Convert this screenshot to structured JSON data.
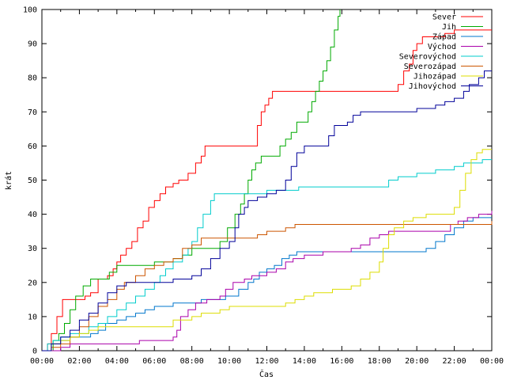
{
  "chart_data": {
    "type": "line",
    "title": "",
    "xlabel": "Čas",
    "ylabel": "krát",
    "xlim": [
      0,
      24
    ],
    "ylim": [
      0,
      100
    ],
    "x_tick_labels": [
      "00:00",
      "02:00",
      "04:00",
      "06:00",
      "08:00",
      "10:00",
      "12:00",
      "14:00",
      "16:00",
      "18:00",
      "20:00",
      "22:00",
      "00:00"
    ],
    "y_ticks": [
      0,
      10,
      20,
      30,
      40,
      50,
      60,
      70,
      80,
      90,
      100
    ],
    "grid": false,
    "legend_position": "top-right",
    "series": [
      {
        "name": "Sever",
        "color": "#ff0000",
        "points": [
          [
            0,
            0
          ],
          [
            0.2,
            0
          ],
          [
            0.3,
            2
          ],
          [
            0.5,
            5
          ],
          [
            0.8,
            10
          ],
          [
            1.1,
            15
          ],
          [
            1.6,
            15
          ],
          [
            2.0,
            15
          ],
          [
            2.3,
            16
          ],
          [
            2.6,
            17
          ],
          [
            3.0,
            21
          ],
          [
            3.5,
            22
          ],
          [
            3.8,
            24
          ],
          [
            4.0,
            26
          ],
          [
            4.2,
            28
          ],
          [
            4.5,
            30
          ],
          [
            4.8,
            32
          ],
          [
            5.1,
            36
          ],
          [
            5.4,
            38
          ],
          [
            5.7,
            42
          ],
          [
            6.0,
            44
          ],
          [
            6.3,
            46
          ],
          [
            6.6,
            48
          ],
          [
            7.0,
            49
          ],
          [
            7.3,
            50
          ],
          [
            7.8,
            52
          ],
          [
            8.2,
            55
          ],
          [
            8.5,
            57
          ],
          [
            8.7,
            60
          ],
          [
            10.0,
            60
          ],
          [
            11.3,
            60
          ],
          [
            11.5,
            66
          ],
          [
            11.7,
            70
          ],
          [
            11.9,
            72
          ],
          [
            12.1,
            74
          ],
          [
            12.3,
            76
          ],
          [
            14.0,
            76
          ],
          [
            16.0,
            76
          ],
          [
            18.8,
            76
          ],
          [
            19.0,
            78
          ],
          [
            19.3,
            82
          ],
          [
            19.6,
            84
          ],
          [
            19.8,
            88
          ],
          [
            20.0,
            90
          ],
          [
            20.3,
            92
          ],
          [
            21.0,
            92
          ],
          [
            21.5,
            93
          ],
          [
            22.0,
            94
          ],
          [
            24.0,
            94
          ]
        ]
      },
      {
        "name": "Jih",
        "color": "#00aa00",
        "points": [
          [
            0,
            0
          ],
          [
            0.3,
            0
          ],
          [
            0.6,
            3
          ],
          [
            0.9,
            5
          ],
          [
            1.2,
            8
          ],
          [
            1.5,
            12
          ],
          [
            1.8,
            16
          ],
          [
            2.2,
            19
          ],
          [
            2.6,
            21
          ],
          [
            3.2,
            21
          ],
          [
            3.6,
            23
          ],
          [
            4.0,
            25
          ],
          [
            5.0,
            25
          ],
          [
            6.0,
            26
          ],
          [
            7.0,
            27
          ],
          [
            7.5,
            28
          ],
          [
            8.0,
            30
          ],
          [
            9.0,
            30
          ],
          [
            9.5,
            32
          ],
          [
            9.9,
            36
          ],
          [
            10.3,
            40
          ],
          [
            10.6,
            43
          ],
          [
            10.8,
            46
          ],
          [
            11.0,
            50
          ],
          [
            11.2,
            53
          ],
          [
            11.4,
            55
          ],
          [
            11.7,
            57
          ],
          [
            12.4,
            57
          ],
          [
            12.7,
            60
          ],
          [
            13.0,
            62
          ],
          [
            13.3,
            64
          ],
          [
            13.6,
            67
          ],
          [
            14.0,
            67
          ],
          [
            14.2,
            70
          ],
          [
            14.4,
            73
          ],
          [
            14.6,
            76
          ],
          [
            14.8,
            79
          ],
          [
            15.0,
            82
          ],
          [
            15.2,
            85
          ],
          [
            15.4,
            89
          ],
          [
            15.6,
            94
          ],
          [
            15.8,
            98
          ],
          [
            15.9,
            100
          ]
        ]
      },
      {
        "name": "Západ",
        "color": "#0077cc",
        "points": [
          [
            0,
            0
          ],
          [
            0.5,
            2
          ],
          [
            1.0,
            3
          ],
          [
            1.5,
            4
          ],
          [
            2.0,
            4
          ],
          [
            2.6,
            5
          ],
          [
            3.0,
            6
          ],
          [
            3.4,
            8
          ],
          [
            4.0,
            9
          ],
          [
            4.5,
            10
          ],
          [
            5.0,
            11
          ],
          [
            5.5,
            12
          ],
          [
            6.0,
            13
          ],
          [
            7.0,
            14
          ],
          [
            8.5,
            15
          ],
          [
            9.8,
            16
          ],
          [
            10.5,
            18
          ],
          [
            11.0,
            20
          ],
          [
            11.3,
            21
          ],
          [
            11.6,
            23
          ],
          [
            12.0,
            24
          ],
          [
            12.4,
            25
          ],
          [
            12.8,
            27
          ],
          [
            13.2,
            28
          ],
          [
            13.6,
            29
          ],
          [
            15.0,
            29
          ],
          [
            18.0,
            29
          ],
          [
            20.0,
            29
          ],
          [
            20.5,
            30
          ],
          [
            21.0,
            32
          ],
          [
            21.5,
            34
          ],
          [
            22.0,
            36
          ],
          [
            22.5,
            38
          ],
          [
            23.0,
            39
          ],
          [
            24.0,
            39
          ]
        ]
      },
      {
        "name": "Východ",
        "color": "#aa00aa",
        "points": [
          [
            0,
            0
          ],
          [
            1.0,
            1
          ],
          [
            1.5,
            2
          ],
          [
            2.0,
            2
          ],
          [
            4.0,
            2
          ],
          [
            5.0,
            2
          ],
          [
            5.2,
            3
          ],
          [
            6.0,
            3
          ],
          [
            7.0,
            4
          ],
          [
            7.2,
            6
          ],
          [
            7.4,
            10
          ],
          [
            7.8,
            12
          ],
          [
            8.2,
            14
          ],
          [
            8.8,
            15
          ],
          [
            9.5,
            16
          ],
          [
            9.8,
            18
          ],
          [
            10.2,
            20
          ],
          [
            10.8,
            21
          ],
          [
            11.2,
            22
          ],
          [
            12.0,
            23
          ],
          [
            12.5,
            24
          ],
          [
            13.0,
            26
          ],
          [
            13.4,
            27
          ],
          [
            14.0,
            28
          ],
          [
            15.0,
            29
          ],
          [
            16.5,
            30
          ],
          [
            17.0,
            31
          ],
          [
            17.5,
            33
          ],
          [
            18.0,
            34
          ],
          [
            18.5,
            35
          ],
          [
            21.5,
            35
          ],
          [
            21.8,
            37
          ],
          [
            22.2,
            38
          ],
          [
            22.7,
            39
          ],
          [
            23.3,
            40
          ],
          [
            23.8,
            40
          ],
          [
            24.0,
            41
          ]
        ]
      },
      {
        "name": "Severovýchod",
        "color": "#00cccc",
        "points": [
          [
            0,
            0
          ],
          [
            0.3,
            2
          ],
          [
            0.6,
            3
          ],
          [
            1.0,
            4
          ],
          [
            1.5,
            5
          ],
          [
            2.0,
            5
          ],
          [
            2.5,
            7
          ],
          [
            3.0,
            8
          ],
          [
            3.5,
            10
          ],
          [
            4.0,
            12
          ],
          [
            4.5,
            14
          ],
          [
            5.0,
            16
          ],
          [
            5.5,
            18
          ],
          [
            6.0,
            20
          ],
          [
            6.3,
            22
          ],
          [
            6.6,
            24
          ],
          [
            7.0,
            26
          ],
          [
            7.5,
            28
          ],
          [
            7.8,
            30
          ],
          [
            8.0,
            32
          ],
          [
            8.3,
            36
          ],
          [
            8.6,
            40
          ],
          [
            9.0,
            44
          ],
          [
            9.2,
            46
          ],
          [
            10.0,
            46
          ],
          [
            12.0,
            47
          ],
          [
            13.0,
            47
          ],
          [
            13.7,
            48
          ],
          [
            14.5,
            48
          ],
          [
            16.0,
            48
          ],
          [
            18.3,
            48
          ],
          [
            18.5,
            50
          ],
          [
            19.0,
            51
          ],
          [
            20.0,
            52
          ],
          [
            21.0,
            53
          ],
          [
            22.0,
            54
          ],
          [
            22.5,
            55
          ],
          [
            23.5,
            56
          ],
          [
            24.0,
            56
          ]
        ]
      },
      {
        "name": "Severozápad",
        "color": "#cc5500",
        "points": [
          [
            0,
            0
          ],
          [
            0.5,
            1
          ],
          [
            1.0,
            2
          ],
          [
            1.5,
            4
          ],
          [
            2.0,
            7
          ],
          [
            2.5,
            10
          ],
          [
            3.0,
            13
          ],
          [
            3.5,
            15
          ],
          [
            4.0,
            18
          ],
          [
            4.4,
            20
          ],
          [
            5.0,
            22
          ],
          [
            5.5,
            24
          ],
          [
            6.0,
            25
          ],
          [
            6.5,
            26
          ],
          [
            7.0,
            27
          ],
          [
            7.5,
            30
          ],
          [
            8.0,
            31
          ],
          [
            8.5,
            33
          ],
          [
            9.0,
            33
          ],
          [
            10.0,
            33
          ],
          [
            11.5,
            34
          ],
          [
            12.0,
            35
          ],
          [
            12.5,
            35
          ],
          [
            13.0,
            36
          ],
          [
            13.5,
            37
          ],
          [
            16.0,
            37
          ],
          [
            19.0,
            37
          ],
          [
            21.0,
            37
          ],
          [
            22.0,
            37
          ],
          [
            23.0,
            37
          ],
          [
            24.0,
            38
          ]
        ]
      },
      {
        "name": "Jihozápad",
        "color": "#dddd00",
        "points": [
          [
            0,
            0
          ],
          [
            0.5,
            2
          ],
          [
            1.0,
            3
          ],
          [
            1.5,
            4
          ],
          [
            2.0,
            5
          ],
          [
            2.5,
            6
          ],
          [
            3.0,
            7
          ],
          [
            4.0,
            7
          ],
          [
            5.0,
            7
          ],
          [
            6.0,
            7
          ],
          [
            7.0,
            9
          ],
          [
            8.0,
            10
          ],
          [
            8.5,
            11
          ],
          [
            9.5,
            12
          ],
          [
            10.0,
            13
          ],
          [
            11.0,
            13
          ],
          [
            12.0,
            13
          ],
          [
            13.0,
            14
          ],
          [
            13.5,
            15
          ],
          [
            14.0,
            16
          ],
          [
            14.5,
            17
          ],
          [
            15.5,
            18
          ],
          [
            16.5,
            19
          ],
          [
            17.0,
            21
          ],
          [
            17.5,
            23
          ],
          [
            18.0,
            26
          ],
          [
            18.2,
            30
          ],
          [
            18.5,
            34
          ],
          [
            18.8,
            36
          ],
          [
            19.3,
            38
          ],
          [
            19.8,
            39
          ],
          [
            20.5,
            40
          ],
          [
            21.0,
            40
          ],
          [
            21.5,
            40
          ],
          [
            22.0,
            42
          ],
          [
            22.3,
            47
          ],
          [
            22.6,
            52
          ],
          [
            22.9,
            56
          ],
          [
            23.2,
            58
          ],
          [
            23.5,
            59
          ],
          [
            24.0,
            59
          ]
        ]
      },
      {
        "name": "Jihovýchod",
        "color": "#000099",
        "points": [
          [
            0,
            0
          ],
          [
            0.5,
            2
          ],
          [
            1.0,
            4
          ],
          [
            1.5,
            6
          ],
          [
            2.0,
            9
          ],
          [
            2.5,
            11
          ],
          [
            3.0,
            14
          ],
          [
            3.5,
            17
          ],
          [
            4.0,
            19
          ],
          [
            4.5,
            20
          ],
          [
            5.0,
            20
          ],
          [
            6.0,
            20
          ],
          [
            7.0,
            21
          ],
          [
            8.0,
            22
          ],
          [
            8.5,
            24
          ],
          [
            9.0,
            27
          ],
          [
            9.5,
            30
          ],
          [
            10.0,
            32
          ],
          [
            10.3,
            36
          ],
          [
            10.5,
            40
          ],
          [
            10.8,
            42
          ],
          [
            11.0,
            44
          ],
          [
            11.5,
            45
          ],
          [
            12.0,
            46
          ],
          [
            12.5,
            47
          ],
          [
            13.0,
            50
          ],
          [
            13.3,
            54
          ],
          [
            13.6,
            58
          ],
          [
            14.0,
            60
          ],
          [
            15.0,
            60
          ],
          [
            15.3,
            63
          ],
          [
            15.6,
            66
          ],
          [
            16.0,
            66
          ],
          [
            16.3,
            67
          ],
          [
            16.6,
            69
          ],
          [
            17.0,
            70
          ],
          [
            18.0,
            70
          ],
          [
            19.5,
            70
          ],
          [
            20.0,
            71
          ],
          [
            21.0,
            72
          ],
          [
            21.5,
            73
          ],
          [
            22.0,
            74
          ],
          [
            22.5,
            76
          ],
          [
            22.8,
            78
          ],
          [
            23.0,
            78
          ],
          [
            23.3,
            80
          ],
          [
            23.6,
            82
          ],
          [
            24.0,
            82
          ]
        ]
      }
    ]
  }
}
